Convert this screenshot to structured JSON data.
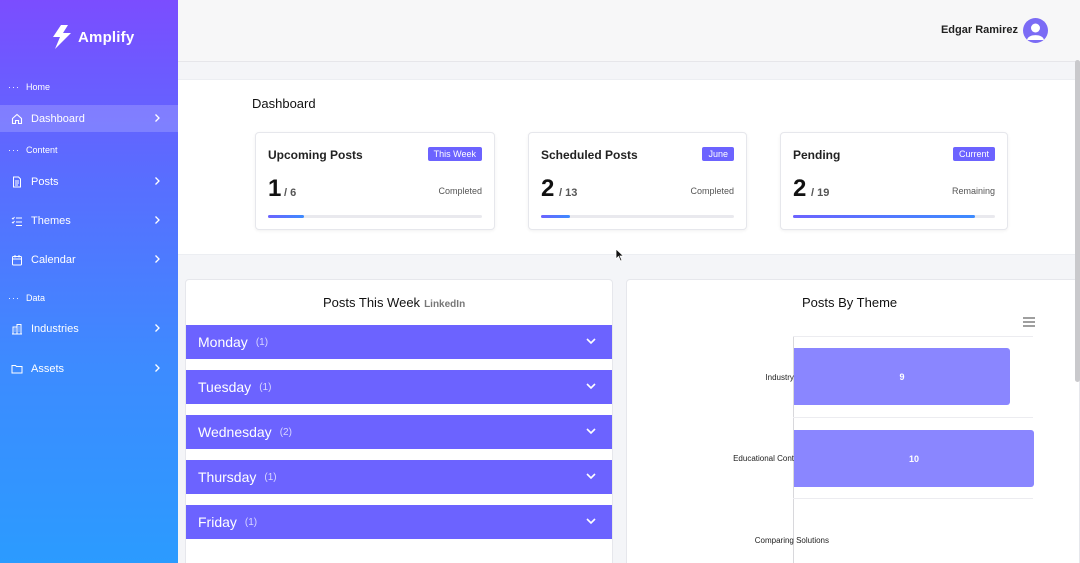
{
  "app": {
    "brand": "Amplify",
    "accent": "#6c63ff"
  },
  "sidebar": {
    "sections": [
      "Home",
      "Content",
      "Data"
    ],
    "items": [
      {
        "label": "Dashboard",
        "icon": "home-icon",
        "active": true
      },
      {
        "label": "Posts",
        "icon": "document-icon"
      },
      {
        "label": "Themes",
        "icon": "checklist-icon"
      },
      {
        "label": "Calendar",
        "icon": "calendar-icon"
      },
      {
        "label": "Industries",
        "icon": "building-icon"
      },
      {
        "label": "Assets",
        "icon": "folder-icon"
      }
    ]
  },
  "header": {
    "user_name": "Edgar Ramirez"
  },
  "dashboard": {
    "title": "Dashboard",
    "cards": [
      {
        "title": "Upcoming Posts",
        "badge": "This Week",
        "value": "1",
        "total": "/ 6",
        "status": "Completed",
        "progress": 0.17
      },
      {
        "title": "Scheduled Posts",
        "badge": "June",
        "value": "2",
        "total": "/ 13",
        "status": "Completed",
        "progress": 0.15
      },
      {
        "title": "Pending",
        "badge": "Current",
        "value": "2",
        "total": "/ 19",
        "status": "Remaining",
        "progress": 0.9
      }
    ]
  },
  "posts_week": {
    "title": "Posts This Week",
    "subtitle": "LinkedIn",
    "days": [
      {
        "label": "Monday",
        "count": "(1)"
      },
      {
        "label": "Tuesday",
        "count": "(1)"
      },
      {
        "label": "Wednesday",
        "count": "(2)"
      },
      {
        "label": "Thursday",
        "count": "(1)"
      },
      {
        "label": "Friday",
        "count": "(1)"
      }
    ]
  },
  "posts_theme": {
    "title": "Posts By Theme"
  },
  "chart_data": {
    "type": "bar",
    "orientation": "horizontal",
    "title": "Posts By Theme",
    "categories": [
      "Industry Solutions",
      "Educational Content on T...",
      "Comparing Solutions"
    ],
    "values": [
      9,
      10,
      null
    ],
    "value_labels": [
      "9",
      "10",
      ""
    ],
    "xlim": [
      0,
      10
    ],
    "grid": true,
    "color": "#8a86ff"
  }
}
